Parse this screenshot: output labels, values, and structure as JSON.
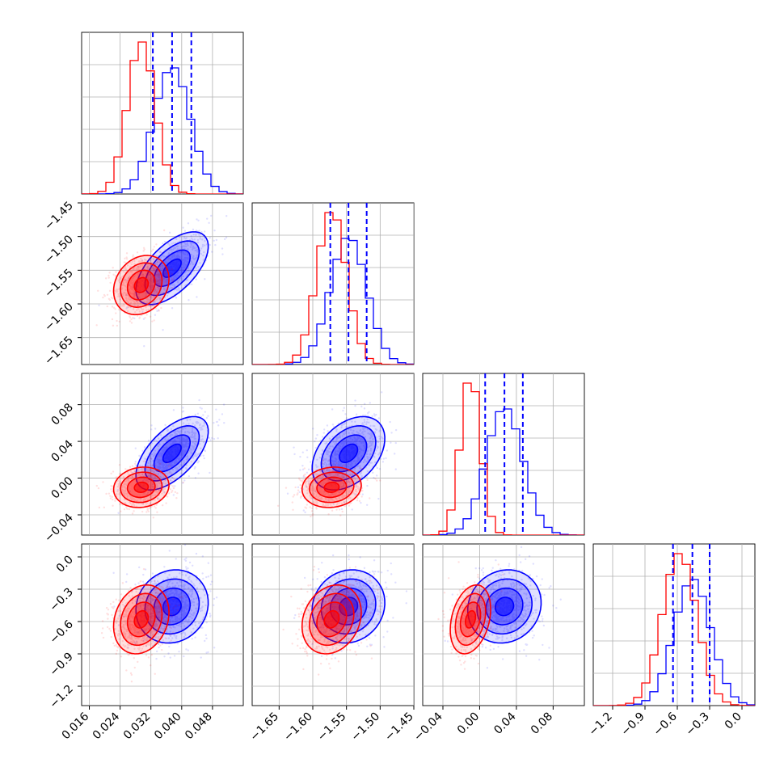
{
  "chart_data": {
    "type": "corner",
    "title": "",
    "parameters": [
      {
        "range": [
          0.014,
          0.056
        ],
        "ticks": [
          0.016,
          0.024,
          0.032,
          0.04,
          0.048
        ],
        "tick_labels": [
          "0.016",
          "0.024",
          "0.032",
          "0.040",
          "0.048"
        ]
      },
      {
        "range": [
          -1.69,
          -1.45
        ],
        "ticks": [
          -1.65,
          -1.6,
          -1.55,
          -1.5,
          -1.45
        ],
        "tick_labels": [
          "−1.65",
          "−1.60",
          "−1.55",
          "−1.50",
          "−1.45"
        ]
      },
      {
        "range": [
          -0.062,
          0.114
        ],
        "ticks": [
          -0.04,
          0.0,
          0.04,
          0.08
        ],
        "tick_labels": [
          "−0.04",
          "0.00",
          "0.04",
          "0.08"
        ]
      },
      {
        "range": [
          -1.38,
          0.12
        ],
        "ticks": [
          -1.2,
          -0.9,
          -0.6,
          -0.3,
          0.0
        ],
        "tick_labels": [
          "−1.2",
          "−0.9",
          "−0.6",
          "−0.3",
          "0.0"
        ]
      }
    ],
    "grid": true,
    "series": [
      {
        "color": "#0000ff",
        "mean": [
          0.0375,
          -1.547,
          0.027,
          -0.46
        ],
        "sd": [
          0.0047,
          0.027,
          0.02,
          0.17
        ],
        "corr": [
          [
            1,
            0.6,
            0.6,
            0.1
          ],
          [
            0.6,
            1,
            0.4,
            0.1
          ],
          [
            0.6,
            0.4,
            1,
            0.1
          ],
          [
            0.1,
            0.1,
            0.1,
            1
          ]
        ]
      },
      {
        "color": "#ff0000",
        "mean": [
          0.0295,
          -1.572,
          -0.01,
          -0.58
        ],
        "sd": [
          0.0036,
          0.022,
          0.011,
          0.16
        ],
        "corr": [
          [
            1,
            0.2,
            0.1,
            0.2
          ],
          [
            0.2,
            1,
            0.1,
            0.2
          ],
          [
            0.1,
            0.1,
            1,
            0.3
          ],
          [
            0.2,
            0.2,
            0.3,
            1
          ]
        ]
      }
    ],
    "quantiles": [
      [
        0.0325,
        0.0375,
        0.0425
      ],
      [
        -1.574,
        -1.547,
        -1.52
      ],
      [
        0.006,
        0.027,
        0.047
      ],
      [
        -0.64,
        -0.46,
        -0.3
      ]
    ],
    "quantile_color": "#0000ff"
  }
}
